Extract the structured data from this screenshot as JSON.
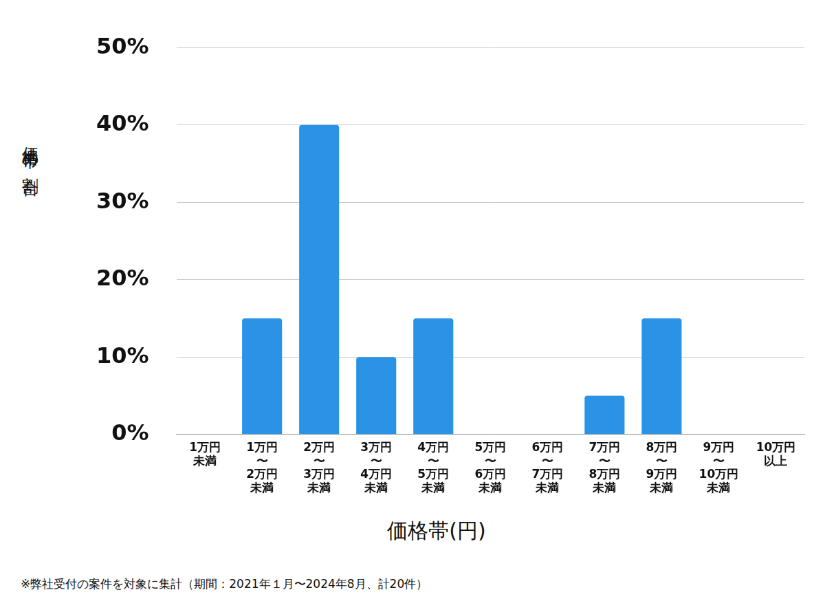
{
  "chart_data": {
    "type": "bar",
    "x_label": "価格帯(円)",
    "y_label": "価格帯の割合",
    "annotations": [
      "※弊社受付の案件を対象に集計（期間：2021年１月〜2024年8月、計20件）"
    ],
    "categories": [
      [
        "1万円",
        "未満"
      ],
      [
        "1万円",
        "〜",
        "2万円",
        "未満"
      ],
      [
        "2万円",
        "〜",
        "3万円",
        "未満"
      ],
      [
        "3万円",
        "〜",
        "4万円",
        "未満"
      ],
      [
        "4万円",
        "〜",
        "5万円",
        "未満"
      ],
      [
        "5万円",
        "〜",
        "6万円",
        "未満"
      ],
      [
        "6万円",
        "〜",
        "7万円",
        "未満"
      ],
      [
        "7万円",
        "〜",
        "8万円",
        "未満"
      ],
      [
        "8万円",
        "〜",
        "9万円",
        "未満"
      ],
      [
        "9万円",
        "〜",
        "10万円",
        "未満"
      ],
      [
        "10万円",
        "以上"
      ]
    ],
    "values": [
      0,
      15,
      40,
      10,
      15,
      0,
      0,
      5,
      15,
      0,
      0
    ],
    "color": "#2a93e6",
    "ylim": [
      0,
      50
    ],
    "yticks": [
      {
        "value": 0,
        "label": "0%"
      },
      {
        "value": 10,
        "label": "10%"
      },
      {
        "value": 20,
        "label": "20%"
      },
      {
        "value": 30,
        "label": "30%"
      },
      {
        "value": 40,
        "label": "40%"
      },
      {
        "value": 50,
        "label": "50%"
      }
    ],
    "grid": true
  }
}
